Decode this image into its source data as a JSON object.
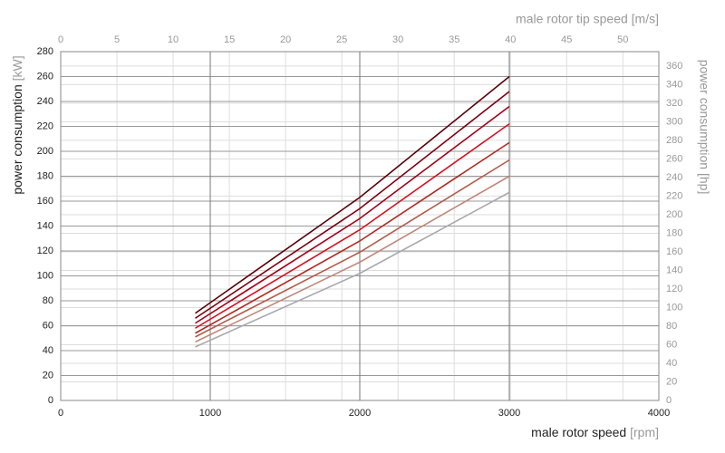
{
  "chart_data": {
    "type": "line",
    "x_label": "male rotor speed",
    "x_unit": "[rpm]",
    "x2_label": "male rotor tip speed [m/s]",
    "y_label": "power consumption",
    "y_unit": "[kW]",
    "y2_label": "power consumption [hp]",
    "x": [
      900,
      2000,
      3000
    ],
    "xlim": [
      0,
      4000
    ],
    "xticks": [
      0,
      1000,
      2000,
      3000,
      4000
    ],
    "x2lim": [
      0,
      53.2
    ],
    "x2ticks": [
      0,
      5,
      10,
      15,
      20,
      25,
      30,
      35,
      40,
      45,
      50
    ],
    "ylim": [
      0,
      280
    ],
    "yticks": [
      0,
      20,
      40,
      60,
      80,
      100,
      120,
      140,
      160,
      180,
      200,
      220,
      240,
      260,
      280
    ],
    "y2lim": [
      0,
      375.5
    ],
    "y2ticks": [
      0,
      20,
      40,
      60,
      80,
      100,
      120,
      140,
      160,
      180,
      200,
      220,
      240,
      260,
      280,
      300,
      320,
      340,
      360
    ],
    "grid": true,
    "series": [
      {
        "color": "#5a0008",
        "values": [
          70,
          163,
          260
        ]
      },
      {
        "color": "#7c0010",
        "values": [
          66,
          154,
          248
        ]
      },
      {
        "color": "#a40018",
        "values": [
          62,
          146,
          236
        ]
      },
      {
        "color": "#d8101e",
        "values": [
          58,
          137,
          222
        ]
      },
      {
        "color": "#b02a22",
        "values": [
          54,
          128,
          207
        ]
      },
      {
        "color": "#b45a48",
        "values": [
          51,
          119,
          193
        ]
      },
      {
        "color": "#c08878",
        "values": [
          47,
          111,
          180
        ]
      },
      {
        "color": "#a8a8b0",
        "values": [
          43,
          102,
          167
        ]
      }
    ]
  }
}
